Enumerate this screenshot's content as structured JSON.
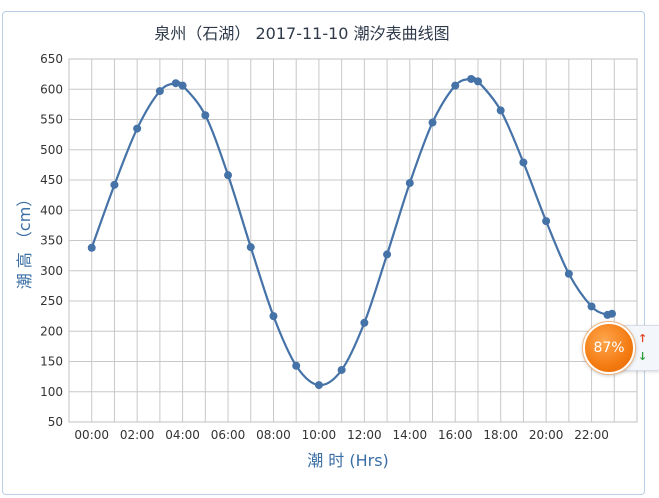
{
  "chart_data": {
    "type": "line",
    "title": "泉州（石湖） 2017-11-10 潮汐表曲线图",
    "xlabel": "潮 时 (Hrs)",
    "ylabel": "潮 高 （cm）",
    "ylim": [
      50,
      650
    ],
    "yticks": [
      50,
      100,
      150,
      200,
      250,
      300,
      350,
      400,
      450,
      500,
      550,
      600,
      650
    ],
    "xlim": [
      -1,
      24
    ],
    "xticks": [
      {
        "v": 0,
        "label": "00:00"
      },
      {
        "v": 2,
        "label": "02:00"
      },
      {
        "v": 4,
        "label": "04:00"
      },
      {
        "v": 6,
        "label": "06:00"
      },
      {
        "v": 8,
        "label": "08:00"
      },
      {
        "v": 10,
        "label": "10:00"
      },
      {
        "v": 12,
        "label": "12:00"
      },
      {
        "v": 14,
        "label": "14:00"
      },
      {
        "v": 16,
        "label": "16:00"
      },
      {
        "v": 18,
        "label": "18:00"
      },
      {
        "v": 20,
        "label": "20:00"
      },
      {
        "v": 22,
        "label": "22:00"
      }
    ],
    "grid": true,
    "color": "#4572a7",
    "series": [
      {
        "x": [
          0,
          1,
          2,
          3,
          3.7,
          4,
          5,
          6,
          7,
          8,
          9,
          10,
          11,
          12,
          13,
          14,
          15,
          16,
          16.7,
          17,
          18,
          19,
          20,
          21,
          22,
          22.7,
          22.9
        ],
        "y": [
          338,
          442,
          535,
          597,
          610,
          606,
          557,
          458,
          339,
          225,
          143,
          111,
          136,
          214,
          327,
          445,
          545,
          606,
          617,
          613,
          565,
          479,
          382,
          295,
          241,
          227,
          229
        ]
      }
    ]
  },
  "widget": {
    "percent": "87%",
    "up_arrow": "↑",
    "down_arrow": "↓",
    "badge_color": "#f47b12"
  }
}
